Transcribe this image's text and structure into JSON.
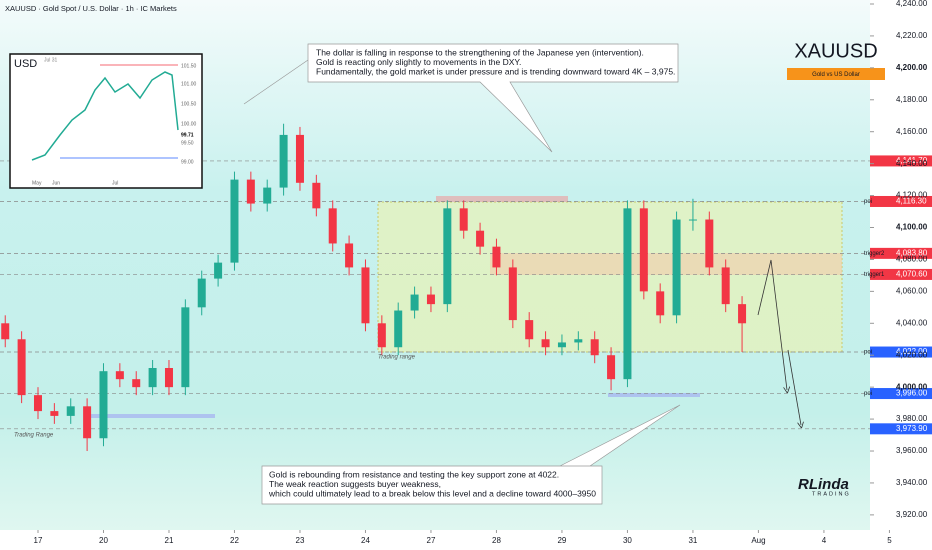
{
  "chart_data": {
    "type": "candlestick",
    "title": "XAUUSD · Gold Spot / U.S. Dollar · 1h · IC Markets",
    "symbol": "XAUUSD",
    "symbol_badge": "Gold vs US Dollar",
    "up_color": "#22ab94",
    "down_color": "#f23645",
    "x": [
      -0.5,
      -0.25,
      0,
      0.25,
      0.5,
      0.75,
      1,
      1.25,
      1.5,
      1.75,
      2,
      2.25,
      2.5,
      2.75,
      3,
      3.25,
      3.5,
      3.75,
      4,
      4.25,
      4.5,
      4.75,
      5,
      5.25,
      5.5,
      5.75,
      6,
      6.25,
      6.5,
      6.75,
      7,
      7.25,
      7.5,
      7.75,
      8,
      8.25,
      8.5,
      8.75,
      9,
      9.25,
      9.5,
      9.75,
      10,
      10.25,
      10.5,
      10.75
    ],
    "open": [
      4040,
      4030,
      3995,
      3985,
      3982,
      3988,
      3968,
      4010,
      4005,
      4000,
      4012,
      4000,
      4050,
      4068,
      4078,
      4130,
      4115,
      4125,
      4158,
      4128,
      4112,
      4090,
      4075,
      4040,
      4025,
      4048,
      4058,
      4052,
      4112,
      4098,
      4088,
      4075,
      4042,
      4030,
      4025,
      4028,
      4030,
      4020,
      4005,
      4112,
      4060,
      4045,
      4105,
      4105,
      4075,
      4052
    ],
    "high": [
      4045,
      4035,
      4000,
      3990,
      3993,
      3993,
      4015,
      4015,
      4010,
      4017,
      4017,
      4055,
      4073,
      4083,
      4135,
      4135,
      4130,
      4165,
      4163,
      4133,
      4117,
      4095,
      4080,
      4045,
      4053,
      4063,
      4063,
      4117,
      4117,
      4103,
      4093,
      4080,
      4047,
      4035,
      4033,
      4035,
      4035,
      4025,
      4117,
      4117,
      4065,
      4110,
      4118,
      4110,
      4080,
      4057
    ],
    "low": [
      4025,
      3990,
      3980,
      3977,
      3977,
      3960,
      3963,
      4000,
      3995,
      3995,
      3995,
      3995,
      4045,
      4063,
      4073,
      4110,
      4110,
      4120,
      4123,
      4107,
      4085,
      4070,
      4035,
      4020,
      4020,
      4043,
      4047,
      4047,
      4093,
      4083,
      4070,
      4037,
      4025,
      4020,
      4020,
      4023,
      4015,
      3998,
      4000,
      4055,
      4040,
      4040,
      4098,
      4070,
      4047,
      4022
    ],
    "close": [
      4030,
      3995,
      3985,
      3982,
      3988,
      3968,
      4010,
      4005,
      4000,
      4012,
      4000,
      4050,
      4068,
      4078,
      4130,
      4115,
      4125,
      4158,
      4128,
      4112,
      4090,
      4075,
      4040,
      4025,
      4048,
      4058,
      4052,
      4112,
      4098,
      4088,
      4075,
      4042,
      4030,
      4025,
      4028,
      4030,
      4020,
      4005,
      4112,
      4060,
      4045,
      4105,
      4105,
      4075,
      4052,
      4040
    ],
    "xlim": [
      -0.58,
      13.65
    ],
    "xticks": [
      {
        "value": 0,
        "label": "17"
      },
      {
        "value": 1,
        "label": "20"
      },
      {
        "value": 2,
        "label": "21"
      },
      {
        "value": 3,
        "label": "22"
      },
      {
        "value": 4,
        "label": "23"
      },
      {
        "value": 5,
        "label": "24"
      },
      {
        "value": 6,
        "label": "27"
      },
      {
        "value": 7,
        "label": "28"
      },
      {
        "value": 8,
        "label": "29"
      },
      {
        "value": 9,
        "label": "30"
      },
      {
        "value": 10,
        "label": "31"
      },
      {
        "value": 11,
        "label": "Aug"
      },
      {
        "value": 12,
        "label": "4"
      },
      {
        "value": 13,
        "label": "5"
      }
    ],
    "ylim": [
      3898,
      4242.5
    ],
    "yticks": [
      {
        "value": 3920,
        "label": "3,920.00"
      },
      {
        "value": 3940,
        "label": "3,940.00"
      },
      {
        "value": 3960,
        "label": "3,960.00"
      },
      {
        "value": 3980,
        "label": "3,980.00"
      },
      {
        "value": 4000,
        "label": "4,000.00"
      },
      {
        "value": 4020,
        "label": "4,020.00"
      },
      {
        "value": 4040,
        "label": "4,040.00"
      },
      {
        "value": 4060,
        "label": "4,060.00"
      },
      {
        "value": 4080,
        "label": "4,080.00"
      },
      {
        "value": 4100,
        "label": "4,100.00"
      },
      {
        "value": 4120,
        "label": "4,120.00"
      },
      {
        "value": 4140,
        "label": "4,140.00"
      },
      {
        "value": 4160,
        "label": "4,160.00"
      },
      {
        "value": 4180,
        "label": "4,180.00"
      },
      {
        "value": 4200,
        "label": "4,200.00"
      },
      {
        "value": 4220,
        "label": "4,220.00"
      },
      {
        "value": 4240,
        "label": "4,240.00"
      }
    ],
    "levels": [
      {
        "value": 4141.7,
        "label": "4,141.70",
        "color": "#f23645"
      },
      {
        "value": 4116.3,
        "label": "4,116.30",
        "color": "#f23645",
        "tag": "poi"
      },
      {
        "value": 4083.8,
        "label": "4,083.80",
        "color": "#f23645",
        "tag": "trigger2"
      },
      {
        "value": 4070.6,
        "label": "4,070.60",
        "color": "#f23645",
        "tag": "trigger1"
      },
      {
        "value": 4022,
        "label": "4,022.00",
        "color": "#2962ff",
        "tag": "poi"
      },
      {
        "value": 3996,
        "label": "3,996.00",
        "color": "#2962ff",
        "tag": "poi"
      },
      {
        "value": 3973.9,
        "label": "3,973.90",
        "color": "#2962ff"
      }
    ],
    "range_labels": [
      "Trading range",
      "Trading Range"
    ],
    "annotations": [
      {
        "lines": [
          "The dollar is falling in response to the strengthening of the Japanese yen (intervention).",
          "Gold is reacting only slightly to movements in the DXY.",
          "Fundamentally, the gold market is under pressure and is trending downward toward 4K – 3,975."
        ]
      },
      {
        "lines": [
          "Gold is rebounding from resistance and testing the key support zone at 4022.",
          "The weak reaction suggests buyer weakness,",
          "which could ultimately lead to a break below this level and a decline toward 4000–3950"
        ]
      }
    ],
    "logo": [
      "RLinda",
      "TRADING"
    ],
    "inset": {
      "symbol": "USD",
      "date": "Jul 31",
      "price_labels": [
        "101.50",
        "101.00",
        "100.50",
        "100.00",
        "99.71",
        "99.50",
        "99.00"
      ],
      "x_labels": [
        "May",
        "Jun",
        "Jul"
      ]
    }
  }
}
